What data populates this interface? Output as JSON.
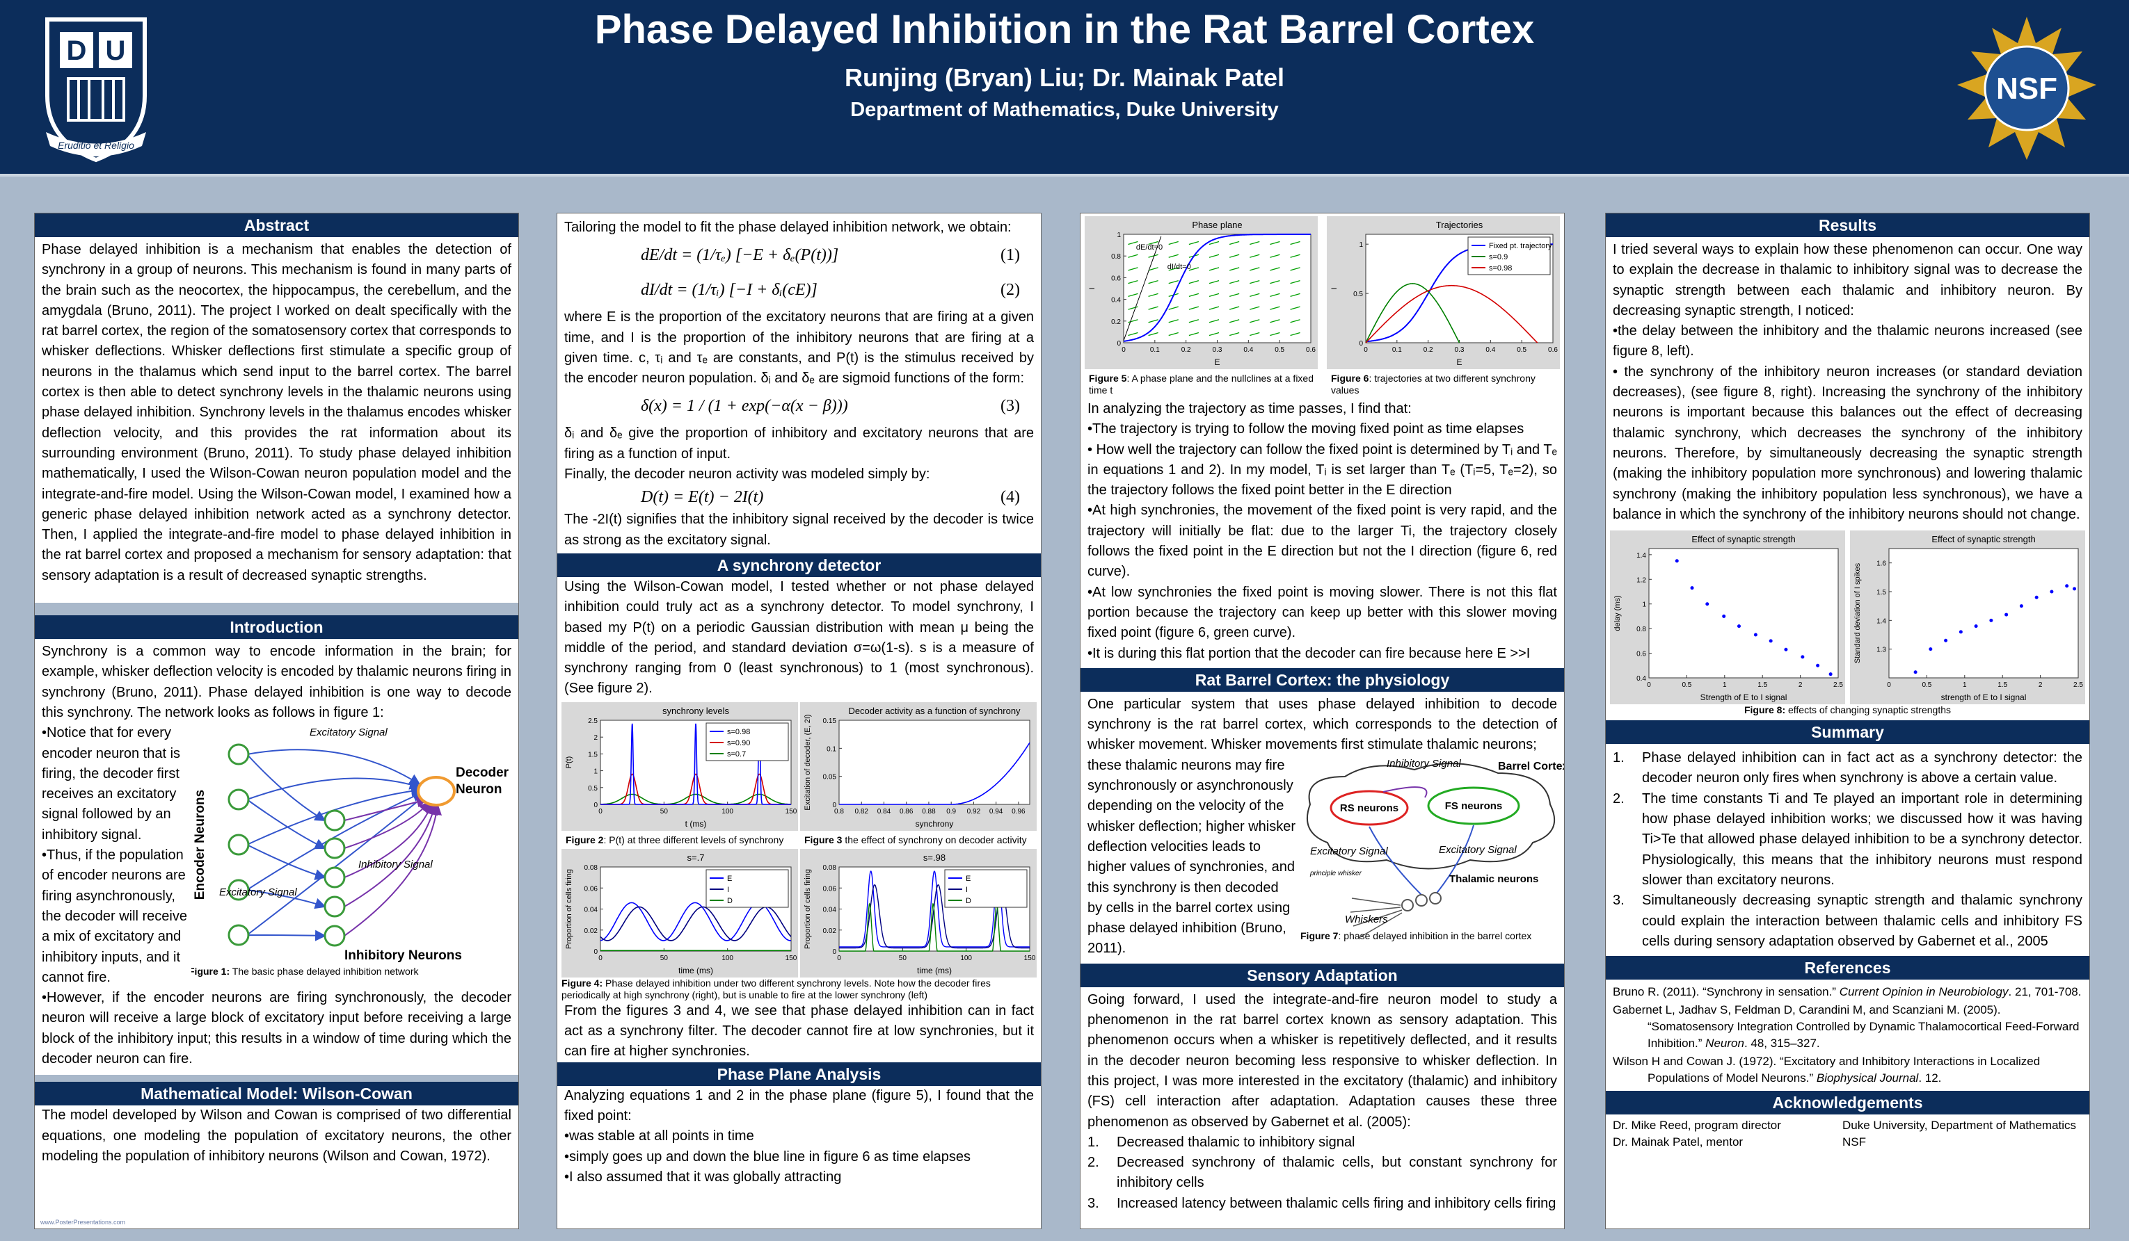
{
  "header": {
    "title": "Phase Delayed Inhibition in the Rat Barrel Cortex",
    "authors": "Runjing (Bryan) Liu; Dr. Mainak Patel",
    "affiliation": "Department of Mathematics, Duke University",
    "left_logo": {
      "letters": [
        "D",
        "U"
      ],
      "motto": "Eruditio et Religio"
    },
    "right_logo": "NSF"
  },
  "abstract": {
    "heading": "Abstract",
    "text": "Phase delayed inhibition is a mechanism that enables the detection of synchrony in a group of neurons. This mechanism is found in many parts of the brain such as the neocortex, the hippocampus, the cerebellum, and the amygdala (Bruno, 2011). The project I worked on dealt specifically with the rat barrel cortex, the region of the somatosensory cortex that corresponds to whisker deflections. Whisker deflections first stimulate a specific group of neurons in the thalamus which send input to the barrel cortex. The barrel cortex is then able to detect synchrony levels in the thalamic neurons using phase delayed inhibition. Synchrony levels in the thalamus encodes whisker deflection velocity, and this provides the rat information about its surrounding environment (Bruno, 2011). To study phase delayed inhibition mathematically, I used the Wilson-Cowan neuron population model and the integrate-and-fire model. Using the Wilson-Cowan model, I examined how a generic phase delayed inhibition network acted as a synchrony detector. Then, I applied the integrate-and-fire model to phase delayed inhibition in the rat barrel cortex and proposed a mechanism for sensory adaptation: that sensory adaptation is a result of decreased synaptic strengths."
  },
  "introduction": {
    "heading": "Introduction",
    "lead": "Synchrony is a common way to encode information in the brain; for example, whisker deflection velocity is encoded by thalamic neurons firing in synchrony (Bruno, 2011). Phase delayed inhibition is one way to decode this synchrony. The network looks as follows in figure 1:",
    "bullets": [
      "•Notice that for every encoder neuron that is firing, the decoder first receives an excitatory signal followed by an inhibitory signal.",
      "•Thus, if the population of encoder neurons are firing asynchronously, the decoder will receive a mix of excitatory and inhibitory inputs, and it cannot fire."
    ],
    "closing": "•However, if the encoder neurons are firing synchronously, the decoder neuron will receive a large block of excitatory input before receiving a large block of the inhibitory input; this results in a window of time during which the decoder neuron can fire.",
    "figure": {
      "encoder": "Encoder Neurons",
      "decoder": "Decoder Neuron",
      "excitatory_top": "Excitatory Signal",
      "inhibitory_mid": "Inhibitory Signal",
      "excitatory_low": "Excitatory Signal",
      "inhibitory_neurons": "Inhibitory Neurons",
      "caption_label": "Figure 1:",
      "caption": " The basic phase delayed inhibition network"
    }
  },
  "wilson_cowan": {
    "heading": "Mathematical Model: Wilson-Cowan",
    "text": "The model developed by Wilson and Cowan is comprised of two differential equations, one modeling the population of excitatory neurons, the other modeling the population of inhibitory neurons (Wilson and Cowan, 1972).",
    "footer": "www.PosterPresentations.com"
  },
  "model": {
    "intro": "Tailoring the model to fit the phase delayed inhibition network, we obtain:",
    "eq1": {
      "formula": "dE/dt = (1/τₑ) [−E + δₑ(P(t))]",
      "number": "(1)"
    },
    "eq2": {
      "formula": "dI/dt = (1/τᵢ) [−I + δᵢ(cE)]",
      "number": "(2)"
    },
    "p1": "where E is the proportion of the excitatory neurons that are firing at a given time, and I is the proportion of the inhibitory neurons that are firing at a given time. c, τᵢ and τₑ are constants, and P(t) is the stimulus received by the encoder neuron population. δᵢ and δₑ are sigmoid functions of the form:",
    "eq3": {
      "formula": "δ(x) = 1 / (1 + exp(−α(x − β)))",
      "number": "(3)"
    },
    "p2": "δᵢ and δₑ give the proportion of inhibitory and excitatory neurons that are firing as a function of input.",
    "p3": "Finally, the decoder neuron activity was modeled simply by:",
    "eq4": {
      "formula": "D(t) = E(t) − 2I(t)",
      "number": "(4)"
    },
    "p4": "The -2I(t) signifies that the inhibitory signal received by the decoder is twice as strong as the excitatory signal."
  },
  "synchrony": {
    "heading": "A synchrony detector",
    "text": "Using the Wilson-Cowan model, I tested whether or not phase delayed inhibition could truly act as a synchrony detector. To model synchrony, I based my P(t) on a periodic Gaussian distribution with mean μ being the middle of the period, and standard deviation σ=ω(1-s). s is a measure of synchrony ranging  from 0 (least synchronous) to 1 (most synchronous). (See figure 2).",
    "fig2": {
      "title": "synchrony levels",
      "xlabel": "t (ms)",
      "ylabel": "P(t)",
      "xlim": [
        0,
        150
      ],
      "ylim": [
        0,
        2.5
      ],
      "xticks": [
        0,
        50,
        100,
        150
      ],
      "yticks": [
        0,
        0.5,
        1,
        1.5,
        2,
        2.5
      ],
      "legend": [
        "s=0.98",
        "s=0.90",
        "s=0.7"
      ],
      "colors": [
        "#0000ff",
        "#d40000",
        "#008000"
      ],
      "caption_label": "Figure 2",
      "caption": ": P(t) at three different levels of synchrony"
    },
    "fig3": {
      "title": "Decoder activity as a function of synchrony",
      "xlabel": "synchrony",
      "ylabel": "Excitation of decoder, (E, 2I)",
      "xlim": [
        0.8,
        0.97
      ],
      "ylim": [
        0,
        0.15
      ],
      "xticks": [
        0.8,
        0.82,
        0.84,
        0.86,
        0.88,
        0.9,
        0.92,
        0.94,
        0.96
      ],
      "yticks": [
        0,
        0.05,
        0.1,
        0.15
      ],
      "colors": [
        "#0000ff"
      ],
      "caption_label": "Figure 3",
      "caption": " the effect of synchrony on decoder activity"
    },
    "fig4a": {
      "title": "s=.7",
      "xlabel": "time (ms)",
      "ylabel": "Proportion of cells firing",
      "xlim": [
        0,
        150
      ],
      "ylim": [
        0,
        0.08
      ],
      "xticks": [
        0,
        50,
        100,
        150
      ],
      "yticks": [
        0,
        0.02,
        0.04,
        0.06,
        0.08
      ],
      "legend": [
        "E",
        "I",
        "D"
      ],
      "colors": [
        "#0000ff",
        "#000080",
        "#008000"
      ]
    },
    "fig4b": {
      "title": "s=.98",
      "xlabel": "time (ms)",
      "ylabel": "Proportion of cells firing",
      "xlim": [
        0,
        150
      ],
      "ylim": [
        0,
        0.08
      ],
      "xticks": [
        0,
        50,
        100,
        150
      ],
      "yticks": [
        0,
        0.02,
        0.04,
        0.06,
        0.08
      ],
      "legend": [
        "E",
        "I",
        "D"
      ],
      "colors": [
        "#0000ff",
        "#000080",
        "#008000"
      ]
    },
    "fig4_caption_label": "Figure 4:",
    "fig4_caption": " Phase delayed inhibition under two different synchrony levels. Note how the decoder fires periodically at high synchrony (right), but is unable to fire at the lower synchrony (left)",
    "conclusion": "From the figures 3 and 4, we see that phase delayed inhibition can in fact act as a synchrony filter. The decoder cannot fire at low synchronies, but it can fire at higher synchronies."
  },
  "phase_plane": {
    "heading": "Phase Plane Analysis",
    "text": "Analyzing equations 1 and 2 in the phase plane (figure 5), I found that the fixed point:",
    "bullets": [
      "•was stable at all points in time",
      "•simply goes up and down the blue line in figure 6 as time elapses",
      "•I also assumed that it was globally attracting"
    ],
    "fig5": {
      "title": "Phase plane",
      "xlabel": "E",
      "ylabel": "I",
      "xlim": [
        0,
        0.6
      ],
      "ylim": [
        0,
        1
      ],
      "xticks": [
        0,
        0.1,
        0.2,
        0.3,
        0.4,
        0.5,
        0.6
      ],
      "yticks": [
        0,
        0.2,
        0.4,
        0.6,
        0.8,
        1
      ],
      "annotations": [
        "dE/dt=0",
        "dI/dt=0"
      ],
      "colors": [
        "#0000ff",
        "#00a000"
      ],
      "caption_label": "Figure 5",
      "caption": ": A phase plane and the nullclines at a fixed time t"
    },
    "fig6": {
      "title": "Trajectories",
      "xlabel": "E",
      "ylabel": "I",
      "xlim": [
        0,
        0.6
      ],
      "ylim": [
        0,
        1.1
      ],
      "xticks": [
        0,
        0.1,
        0.2,
        0.3,
        0.4,
        0.5,
        0.6
      ],
      "yticks": [
        0,
        0.5,
        1
      ],
      "legend": [
        "Fixed pt. trajectory",
        "s=0.9",
        "s=0.98"
      ],
      "colors": [
        "#0000ff",
        "#008000",
        "#d40000"
      ],
      "caption_label": "Figure 6",
      "caption": ": trajectories at two different synchrony values"
    },
    "lead": "In analyzing the trajectory as time passes, I find that:",
    "points": [
      "•The trajectory is trying to follow the moving fixed point as time elapses",
      "• How well the trajectory can follow the fixed point is determined by Tᵢ and Tₑ in equations 1 and 2). In my model, Tᵢ is set larger than Tₑ (Tᵢ=5, Tₑ=2), so the trajectory follows the fixed point better in the E direction",
      "•At high synchronies, the movement of the fixed point is very rapid, and the trajectory will initially be flat: due to the larger Ti, the trajectory closely follows the fixed point in the E direction but not the I direction (figure 6, red curve).",
      "•At low synchronies the fixed point is moving slower. There is not this flat portion because the trajectory can keep up better with this slower moving fixed point (figure 6, green curve).",
      "•It is during this flat portion that the decoder can fire because here E >>I"
    ]
  },
  "barrel": {
    "heading": "Rat Barrel Cortex: the physiology",
    "text_top": "One particular system that uses phase delayed inhibition to decode synchrony is the rat barrel cortex, which corresponds to the detection of whisker movement. Whisker movements first stimulate thalamic neurons;",
    "text_side": "these thalamic neurons may fire synchronously  or asynchronously depending on the velocity of the whisker deflection; higher whisker deflection velocities leads to higher values of synchronies, and this synchrony is then decoded by cells in the barrel cortex using phase delayed inhibition (Bruno, 2011).",
    "figure": {
      "inhibitory": "Inhibitory Signal",
      "cortex": "Barrel Cortex",
      "rs": "RS neurons",
      "fs": "FS neurons",
      "excitatory_left": "Excitatory Signal",
      "excitatory_right": "Excitatory Signal",
      "principle": "principle whisker",
      "thalamic": "Thalamic neurons",
      "whiskers": "Whiskers",
      "caption_label": "Figure 7",
      "caption": ": phase delayed inhibition in the barrel cortex"
    }
  },
  "adaptation": {
    "heading": "Sensory Adaptation",
    "text": "Going forward, I used the integrate-and-fire neuron model to study a phenomenon in the rat barrel cortex known as sensory adaptation. This phenomenon occurs when a whisker is repetitively deflected, and it results in the decoder neuron becoming less responsive to whisker deflection. In this project, I was more interested in the excitatory (thalamic) and inhibitory (FS) cell interaction after adaptation. Adaptation causes these three phenomenon as observed by Gabernet et al. (2005):",
    "items": [
      {
        "marker": "1.",
        "text": "Decreased thalamic to inhibitory signal"
      },
      {
        "marker": "2.",
        "text": "Decreased synchrony of thalamic cells, but constant synchrony for inhibitory cells"
      },
      {
        "marker": "3.",
        "text": "Increased latency between thalamic cells firing and inhibitory cells firing"
      }
    ]
  },
  "results": {
    "heading": "Results",
    "text": "I tried several ways to explain how these phenomenon can occur. One way to explain the decrease in thalamic to inhibitory signal was to decrease the synaptic strength between each thalamic and inhibitory neuron. By decreasing synaptic strength, I noticed:",
    "bullets": [
      "•the delay between the inhibitory and  the  thalamic  neurons  increased (see figure 8, left).",
      "• the synchrony  of  the  inhibitory neuron increases (or standard deviation decreases), (see figure 8, right). Increasing the synchrony of the inhibitory neurons is important because this balances out the effect of decreasing thalamic synchrony, which decreases the synchrony of the inhibitory neurons. Therefore, by simultaneously decreasing the synaptic strength (making the inhibitory population more synchronous) and lowering thalamic synchrony (making the inhibitory population less synchronous), we have a balance in which the synchrony of the inhibitory neurons should not change."
    ],
    "fig8a": {
      "title": "Effect of synaptic strength",
      "xlabel": "Strength of E to I signal",
      "ylabel": "delay (ms)",
      "xlim": [
        0,
        2.5
      ],
      "ylim": [
        0.4,
        1.45
      ],
      "xticks": [
        0,
        0.5,
        1,
        1.5,
        2,
        2.5
      ],
      "yticks": [
        0.4,
        0.6,
        0.8,
        1,
        1.2,
        1.4
      ],
      "color": "#0000ff",
      "x": [
        0.37,
        0.57,
        0.77,
        0.99,
        1.19,
        1.41,
        1.61,
        1.81,
        2.03,
        2.23,
        2.4
      ],
      "y": [
        1.35,
        1.13,
        1.0,
        0.9,
        0.82,
        0.75,
        0.7,
        0.63,
        0.57,
        0.5,
        0.43
      ]
    },
    "fig8b": {
      "title": "Effect of synaptic strength",
      "xlabel": "strength of E to I signal",
      "ylabel": "Standard deviation of I spikes",
      "xlim": [
        0,
        2.5
      ],
      "ylim": [
        1.2,
        1.65
      ],
      "xticks": [
        0,
        0.5,
        1,
        1.5,
        2,
        2.5
      ],
      "yticks": [
        1.3,
        1.4,
        1.5,
        1.6
      ],
      "color": "#0000ff",
      "x": [
        0.35,
        0.55,
        0.75,
        0.95,
        1.15,
        1.35,
        1.55,
        1.75,
        1.95,
        2.15,
        2.35,
        2.45
      ],
      "y": [
        1.22,
        1.3,
        1.33,
        1.36,
        1.38,
        1.4,
        1.42,
        1.45,
        1.48,
        1.5,
        1.52,
        1.51
      ]
    },
    "fig8_caption_label": "Figure 8:",
    "fig8_caption": " effects of changing synaptic strengths"
  },
  "summary": {
    "heading": "Summary",
    "items": [
      {
        "marker": "1.",
        "text": "Phase delayed inhibition can in fact act as a synchrony detector: the decoder neuron only fires when synchrony is above a certain value."
      },
      {
        "marker": "2.",
        "text": "The time constants Ti and Te played an important role in determining how phase delayed inhibition works; we discussed how it was having Ti>Te that allowed phase delayed inhibition to be a synchrony detector. Physiologically, this means that the inhibitory neurons must respond slower than excitatory neurons."
      },
      {
        "marker": "3.",
        "text": "Simultaneously decreasing synaptic strength and thalamic synchrony could explain the interaction between thalamic cells and inhibitory FS cells during sensory adaptation observed by Gabernet et al., 2005"
      }
    ]
  },
  "references": {
    "heading": "References",
    "items": [
      {
        "authors": "Bruno R. (2011). ",
        "title": "“Synchrony in sensation.” ",
        "journal": "Current Opinion in Neurobiology",
        "details": ". 21, 701-708."
      },
      {
        "authors": "Gabernet L, Jadhav S, Feldman D, Carandini M, and Scanziani M. (2005). ",
        "title": "“Somatosensory Integration Controlled by Dynamic Thalamocortical Feed-Forward Inhibition.” ",
        "journal": "Neuron",
        "details": ". 48, 315–327."
      },
      {
        "authors": "Wilson H and Cowan J. (1972). ",
        "title": "“Excitatory and Inhibitory Interactions in Localized Populations of Model Neurons.” ",
        "journal": "Biophysical Journal",
        "details": ". 12."
      }
    ]
  },
  "acknowledgements": {
    "heading": "Acknowledgements",
    "left": [
      "Dr. Mike Reed, program director",
      "Dr. Mainak Patel, mentor"
    ],
    "right": [
      "Duke University, Department of Mathematics",
      "NSF"
    ]
  }
}
